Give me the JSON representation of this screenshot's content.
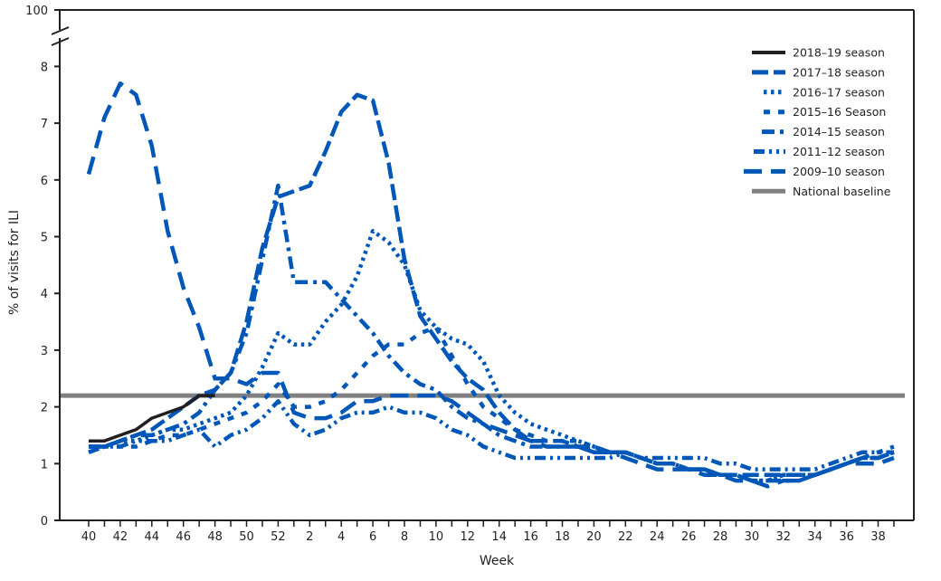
{
  "chart_data": {
    "type": "line",
    "title": "",
    "xlabel": "Week",
    "ylabel": "% of visits for ILI",
    "ylim": [
      0,
      8
    ],
    "y_top_break_label": "100",
    "y_ticks": [
      0,
      1,
      2,
      3,
      4,
      5,
      6,
      7,
      8
    ],
    "x_weeks": [
      40,
      41,
      42,
      43,
      44,
      45,
      46,
      47,
      48,
      49,
      50,
      51,
      52,
      1,
      2,
      3,
      4,
      5,
      6,
      7,
      8,
      9,
      10,
      11,
      12,
      13,
      14,
      15,
      16,
      17,
      18,
      19,
      20,
      21,
      22,
      23,
      24,
      25,
      26,
      27,
      28,
      29,
      30,
      31,
      32,
      33,
      34,
      35,
      36,
      37,
      38,
      39
    ],
    "x_tick_labels": [
      "40",
      "42",
      "44",
      "46",
      "48",
      "50",
      "52",
      "2",
      "4",
      "6",
      "8",
      "10",
      "12",
      "14",
      "16",
      "18",
      "20",
      "22",
      "24",
      "26",
      "28",
      "30",
      "32",
      "34",
      "36",
      "38"
    ],
    "grid": false,
    "legend_position": "top-right",
    "series": [
      {
        "name": "2018–19 season",
        "color": "#231f20",
        "dash": "solid",
        "values": [
          1.4,
          1.4,
          1.5,
          1.6,
          1.8,
          1.9,
          2.0,
          2.2,
          2.2
        ]
      },
      {
        "name": "2017–18 season",
        "color": "#0057b8",
        "dash": "long-dash",
        "values": [
          1.3,
          1.3,
          1.4,
          1.5,
          1.6,
          1.8,
          2.0,
          2.2,
          2.3,
          2.6,
          3.5,
          4.8,
          5.7,
          5.8,
          5.9,
          6.5,
          7.2,
          7.5,
          7.4,
          6.3,
          4.6,
          3.6,
          3.2,
          2.8,
          2.5,
          2.3,
          1.9,
          1.6,
          1.4,
          1.4,
          1.4,
          1.3,
          1.3,
          1.2,
          1.2,
          1.1,
          1.0,
          1.0,
          0.9,
          0.9,
          0.8,
          0.8,
          0.8,
          0.8,
          0.8,
          0.8,
          0.8,
          0.9,
          1.0,
          1.1,
          1.1,
          1.2
        ]
      },
      {
        "name": "2016–17 season",
        "color": "#0057b8",
        "dash": "dot",
        "values": [
          1.3,
          1.3,
          1.4,
          1.4,
          1.5,
          1.6,
          1.6,
          1.7,
          1.8,
          1.9,
          2.2,
          2.7,
          3.3,
          3.1,
          3.1,
          3.5,
          3.8,
          4.3,
          5.1,
          4.9,
          4.5,
          3.7,
          3.4,
          3.2,
          3.1,
          2.8,
          2.2,
          1.9,
          1.7,
          1.6,
          1.5,
          1.4,
          1.3,
          1.2,
          1.2,
          1.1,
          1.0,
          1.0,
          0.9,
          0.9,
          0.8,
          0.8,
          0.7,
          0.7,
          0.8,
          0.8,
          0.8,
          0.9,
          1.0,
          1.1,
          1.1,
          1.2
        ]
      },
      {
        "name": "2015–16 Season",
        "color": "#0057b8",
        "dash": "short-dash",
        "values": [
          1.2,
          1.3,
          1.3,
          1.3,
          1.4,
          1.5,
          1.5,
          1.6,
          1.7,
          1.8,
          1.9,
          2.1,
          2.4,
          2.0,
          2.0,
          2.1,
          2.3,
          2.6,
          2.9,
          3.1,
          3.1,
          3.3,
          3.4,
          2.9,
          2.4,
          2.0,
          1.8,
          1.6,
          1.5,
          1.4,
          1.4,
          1.4,
          1.3,
          1.2,
          1.2,
          1.1,
          1.0,
          1.0,
          0.9,
          0.9,
          0.8,
          0.8,
          0.7,
          0.7,
          0.8,
          0.8,
          0.8,
          0.9,
          1.0,
          1.1,
          1.2,
          1.3
        ]
      },
      {
        "name": "2014–15 season",
        "color": "#0057b8",
        "dash": "dash-dot",
        "values": [
          1.3,
          1.3,
          1.4,
          1.5,
          1.5,
          1.6,
          1.7,
          1.9,
          2.3,
          2.6,
          3.3,
          4.6,
          5.9,
          4.2,
          4.2,
          4.2,
          3.9,
          3.6,
          3.3,
          2.9,
          2.6,
          2.4,
          2.3,
          2.0,
          1.8,
          1.7,
          1.5,
          1.4,
          1.3,
          1.3,
          1.3,
          1.3,
          1.2,
          1.2,
          1.2,
          1.1,
          1.0,
          1.0,
          0.9,
          0.9,
          0.8,
          0.8,
          0.7,
          0.7,
          0.7,
          0.7,
          0.8,
          0.9,
          1.0,
          1.1,
          1.1,
          1.2
        ]
      },
      {
        "name": "2011–12 season",
        "color": "#0057b8",
        "dash": "dash-dot-dot",
        "values": [
          1.2,
          1.3,
          1.3,
          1.4,
          1.4,
          1.4,
          1.5,
          1.6,
          1.3,
          1.5,
          1.6,
          1.8,
          2.1,
          1.7,
          1.5,
          1.6,
          1.8,
          1.9,
          1.9,
          2.0,
          1.9,
          1.9,
          1.8,
          1.6,
          1.5,
          1.3,
          1.2,
          1.1,
          1.1,
          1.1,
          1.1,
          1.1,
          1.1,
          1.1,
          1.2,
          1.1,
          1.1,
          1.1,
          1.1,
          1.1,
          1.0,
          1.0,
          0.9,
          0.9,
          0.9,
          0.9,
          0.9,
          1.0,
          1.1,
          1.2,
          1.2,
          1.2
        ]
      },
      {
        "name": "2009–10 season",
        "color": "#0057b8",
        "dash": "long-dash-gap",
        "values": [
          6.1,
          7.1,
          7.7,
          7.5,
          6.6,
          5.1,
          4.1,
          3.4,
          2.5,
          2.5,
          2.4,
          2.6,
          2.6,
          1.9,
          1.8,
          1.8,
          1.9,
          2.1,
          2.1,
          2.2,
          2.2,
          2.2,
          2.2,
          2.1,
          1.9,
          1.7,
          1.6,
          1.5,
          1.4,
          1.3,
          1.3,
          1.3,
          1.2,
          1.2,
          1.1,
          1.0,
          0.9,
          0.9,
          0.9,
          0.8,
          0.8,
          0.7,
          0.7,
          0.6,
          0.7,
          0.7,
          0.8,
          0.9,
          1.0,
          1.0,
          1.0,
          1.1
        ]
      },
      {
        "name": "National baseline",
        "color": "#808080",
        "dash": "solid",
        "values": [
          2.2,
          2.2,
          2.2,
          2.2,
          2.2,
          2.2,
          2.2,
          2.2,
          2.2,
          2.2,
          2.2,
          2.2,
          2.2,
          2.2,
          2.2,
          2.2,
          2.2,
          2.2,
          2.2,
          2.2,
          2.2,
          2.2,
          2.2,
          2.2,
          2.2,
          2.2,
          2.2,
          2.2,
          2.2,
          2.2,
          2.2,
          2.2,
          2.2,
          2.2,
          2.2,
          2.2,
          2.2,
          2.2,
          2.2,
          2.2,
          2.2,
          2.2,
          2.2,
          2.2,
          2.2,
          2.2,
          2.2,
          2.2,
          2.2,
          2.2,
          2.2,
          2.2
        ]
      }
    ]
  }
}
